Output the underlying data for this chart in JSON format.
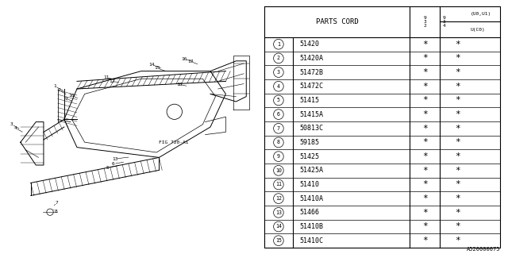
{
  "title": "A520000075",
  "parts": [
    {
      "num": 1,
      "code": "51420"
    },
    {
      "num": 2,
      "code": "51420A"
    },
    {
      "num": 3,
      "code": "51472B"
    },
    {
      "num": 4,
      "code": "51472C"
    },
    {
      "num": 5,
      "code": "51415"
    },
    {
      "num": 6,
      "code": "51415A"
    },
    {
      "num": 7,
      "code": "50813C"
    },
    {
      "num": 8,
      "code": "59185"
    },
    {
      "num": 9,
      "code": "51425"
    },
    {
      "num": 10,
      "code": "51425A"
    },
    {
      "num": 11,
      "code": "51410"
    },
    {
      "num": 12,
      "code": "51410A"
    },
    {
      "num": 13,
      "code": "51466"
    },
    {
      "num": 14,
      "code": "51410B"
    },
    {
      "num": 15,
      "code": "51410C"
    }
  ],
  "fig_label": "FIG 720-A1",
  "background": "#ffffff",
  "line_color": "#000000"
}
